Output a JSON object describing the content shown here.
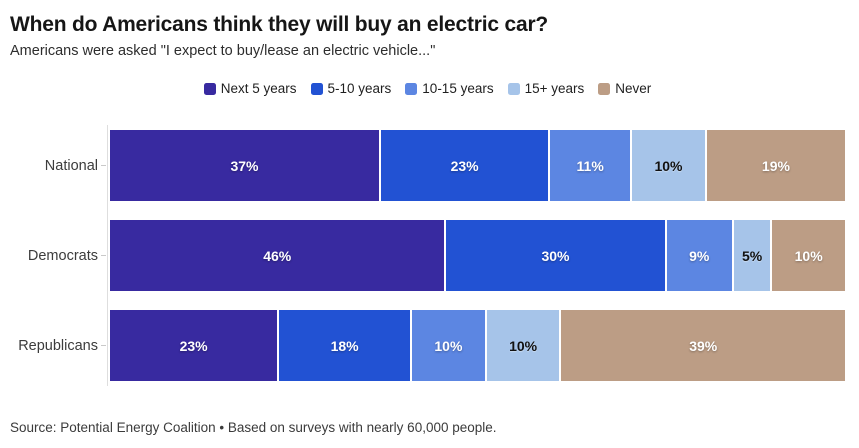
{
  "header": {
    "title": "When do Americans think they will buy an electric car?",
    "subtitle": "Americans were asked \"I expect to buy/lease an electric vehicle...\""
  },
  "footer": {
    "source": "Source: Potential Energy Coalition • Based on surveys with nearly 60,000 people."
  },
  "chart_data": {
    "type": "bar",
    "orientation": "horizontal",
    "stacked": true,
    "title": "When do Americans think they will buy an electric car?",
    "categories": [
      "National",
      "Democrats",
      "Republicans"
    ],
    "series": [
      {
        "name": "Next 5 years",
        "color": "#382aa0",
        "label_color": "#ffffff",
        "values": [
          37,
          46,
          23
        ]
      },
      {
        "name": "5-10 years",
        "color": "#2252d3",
        "label_color": "#ffffff",
        "values": [
          23,
          30,
          18
        ]
      },
      {
        "name": "10-15 years",
        "color": "#5c86e2",
        "label_color": "#ffffff",
        "values": [
          11,
          9,
          10
        ]
      },
      {
        "name": "15+ years",
        "color": "#a6c4e9",
        "label_color": "#111111",
        "values": [
          10,
          5,
          10
        ]
      },
      {
        "name": "Never",
        "color": "#bc9d85",
        "label_color": "#ffffff",
        "values": [
          19,
          10,
          39
        ]
      }
    ],
    "value_suffix": "%",
    "xlim": [
      0,
      100
    ],
    "grid": false,
    "legend_position": "top-center"
  }
}
